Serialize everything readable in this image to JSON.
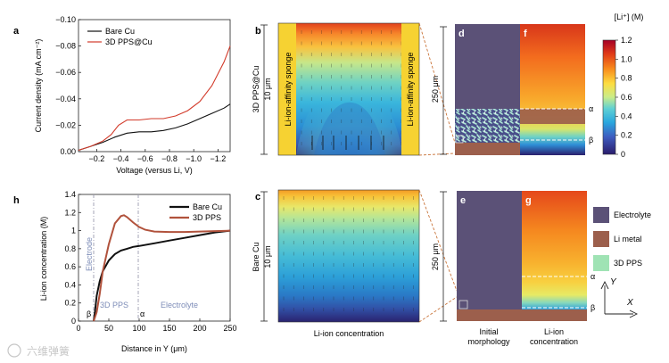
{
  "panel_letters": {
    "a": "a",
    "b": "b",
    "c": "c",
    "d": "d",
    "e": "e",
    "f": "f",
    "g": "g",
    "h": "h"
  },
  "panel_a": {
    "ylabel": "Current density (mA cm⁻²)",
    "xlabel": "Voltage (versus Li, V)",
    "yticks": [
      "−0.10",
      "−0.08",
      "−0.06",
      "−0.04",
      "−0.02",
      "0.00"
    ],
    "xticks": [
      "−0.2",
      "−0.4",
      "−0.6",
      "−0.8",
      "−1.0",
      "−1.2"
    ],
    "legend": [
      "Bare Cu",
      "3D PPS@Cu"
    ]
  },
  "panel_h": {
    "ylabel": "Li-ion concentration (M)",
    "xlabel": "Distance in Y (μm)",
    "yticks": [
      "0",
      "0.2",
      "0.4",
      "0.6",
      "0.8",
      "1",
      "1.2",
      "1.4"
    ],
    "xticks": [
      "0",
      "50",
      "100",
      "150",
      "200",
      "250"
    ],
    "legend": [
      "Bare Cu",
      "3D PPS"
    ],
    "region_electrode": "Electrode",
    "region_pps": "3D PPS",
    "region_electrolyte": "Electrolyte",
    "alpha": "α",
    "beta": "β"
  },
  "panel_b": {
    "side_label": "3D PPS@Cu",
    "size_label": "10 μm",
    "sponge_left": "Li-ion-affinity sponge",
    "sponge_right": "Li-ion-affinity sponge"
  },
  "panel_c": {
    "side_label": "Bare Cu",
    "size_label": "10 μm",
    "caption": "Li-ion concentration"
  },
  "scale_250_top": "250 μm",
  "scale_250_bottom": "250 μm",
  "marker_alpha": "α",
  "marker_beta": "β",
  "colorbar": {
    "title": "[Li⁺] (M)",
    "ticks": [
      "1.2",
      "1.0",
      "0.8",
      "0.6",
      "0.4",
      "0.2",
      "0"
    ]
  },
  "legend_right": {
    "items": [
      {
        "label": "Electrolyte",
        "color": "#5b5177"
      },
      {
        "label": "Li metal",
        "color": "#9c5f4c"
      },
      {
        "label": "3D PPS",
        "color": "#9fe3b4"
      }
    ]
  },
  "axes_labels": {
    "x": "X",
    "y": "Y"
  },
  "bottom_labels": {
    "initial_1": "Initial",
    "initial_2": "morphology",
    "liion_1": "Li-ion",
    "liion_2": "concentration"
  },
  "watermark": "六维弹簧",
  "chart_data": [
    {
      "type": "line",
      "ylabel": "Current density (mA cm⁻²)",
      "xlabel": "Voltage (versus Li, V)",
      "xlim": [
        -0.05,
        -1.3
      ],
      "ylim": [
        0.0,
        -0.1
      ],
      "series": [
        {
          "name": "Bare Cu",
          "x": [
            -0.05,
            -0.15,
            -0.25,
            -0.35,
            -0.45,
            -0.55,
            -0.65,
            -0.75,
            -0.85,
            -0.95,
            -1.05,
            -1.15,
            -1.25,
            -1.3
          ],
          "y": [
            -0.001,
            -0.004,
            -0.007,
            -0.011,
            -0.014,
            -0.015,
            -0.015,
            -0.016,
            -0.018,
            -0.021,
            -0.025,
            -0.029,
            -0.033,
            -0.036
          ]
        },
        {
          "name": "3D PPS@Cu",
          "x": [
            -0.05,
            -0.15,
            -0.25,
            -0.32,
            -0.38,
            -0.45,
            -0.55,
            -0.65,
            -0.75,
            -0.85,
            -0.95,
            -1.05,
            -1.15,
            -1.25,
            -1.3
          ],
          "y": [
            -0.001,
            -0.004,
            -0.008,
            -0.013,
            -0.02,
            -0.024,
            -0.024,
            -0.025,
            -0.025,
            -0.027,
            -0.031,
            -0.038,
            -0.05,
            -0.068,
            -0.08
          ]
        }
      ]
    },
    {
      "type": "line",
      "ylabel": "Li-ion concentration (M)",
      "xlabel": "Distance in Y (μm)",
      "xlim": [
        0,
        250
      ],
      "ylim": [
        0,
        1.4
      ],
      "series": [
        {
          "name": "Bare Cu",
          "x": [
            25,
            27,
            30,
            35,
            40,
            50,
            60,
            70,
            80,
            90,
            100,
            125,
            150,
            175,
            200,
            225,
            250
          ],
          "y": [
            0.0,
            0.1,
            0.28,
            0.44,
            0.55,
            0.67,
            0.74,
            0.78,
            0.8,
            0.82,
            0.83,
            0.86,
            0.89,
            0.92,
            0.95,
            0.98,
            1.0
          ]
        },
        {
          "name": "3D PPS",
          "x": [
            25,
            30,
            35,
            40,
            50,
            60,
            70,
            75,
            80,
            90,
            100,
            110,
            125,
            150,
            175,
            200,
            225,
            250
          ],
          "y": [
            0.0,
            0.1,
            0.3,
            0.55,
            0.85,
            1.08,
            1.16,
            1.17,
            1.15,
            1.09,
            1.04,
            1.01,
            0.99,
            0.985,
            0.985,
            0.99,
            0.995,
            1.0
          ]
        }
      ]
    }
  ]
}
